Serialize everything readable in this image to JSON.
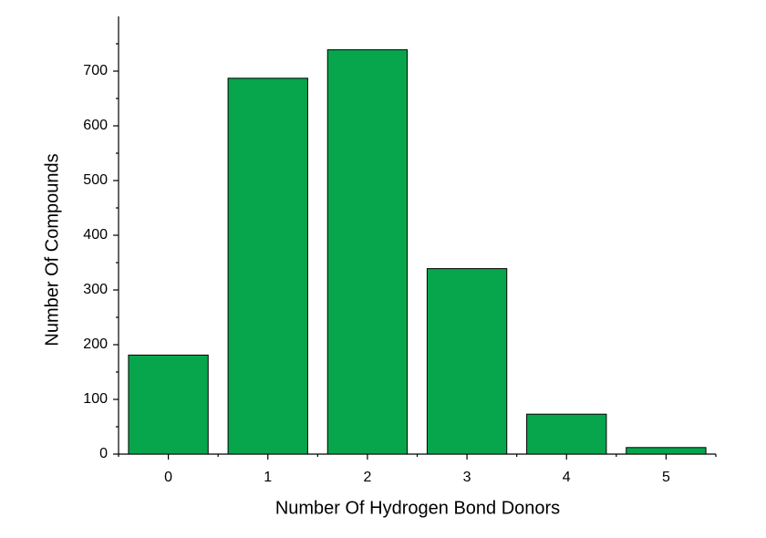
{
  "chart_data": {
    "type": "bar",
    "x_label": "Number Of Hydrogen Bond Donors",
    "y_label": "Number Of Compounds",
    "categories": [
      "0",
      "1",
      "2",
      "3",
      "4",
      "5"
    ],
    "values": [
      181,
      687,
      739,
      339,
      73,
      12
    ],
    "color": "#07a64c",
    "ylim": [
      0,
      800
    ],
    "yticks": [
      0,
      100,
      200,
      300,
      400,
      500,
      600,
      700
    ],
    "grid": false
  }
}
